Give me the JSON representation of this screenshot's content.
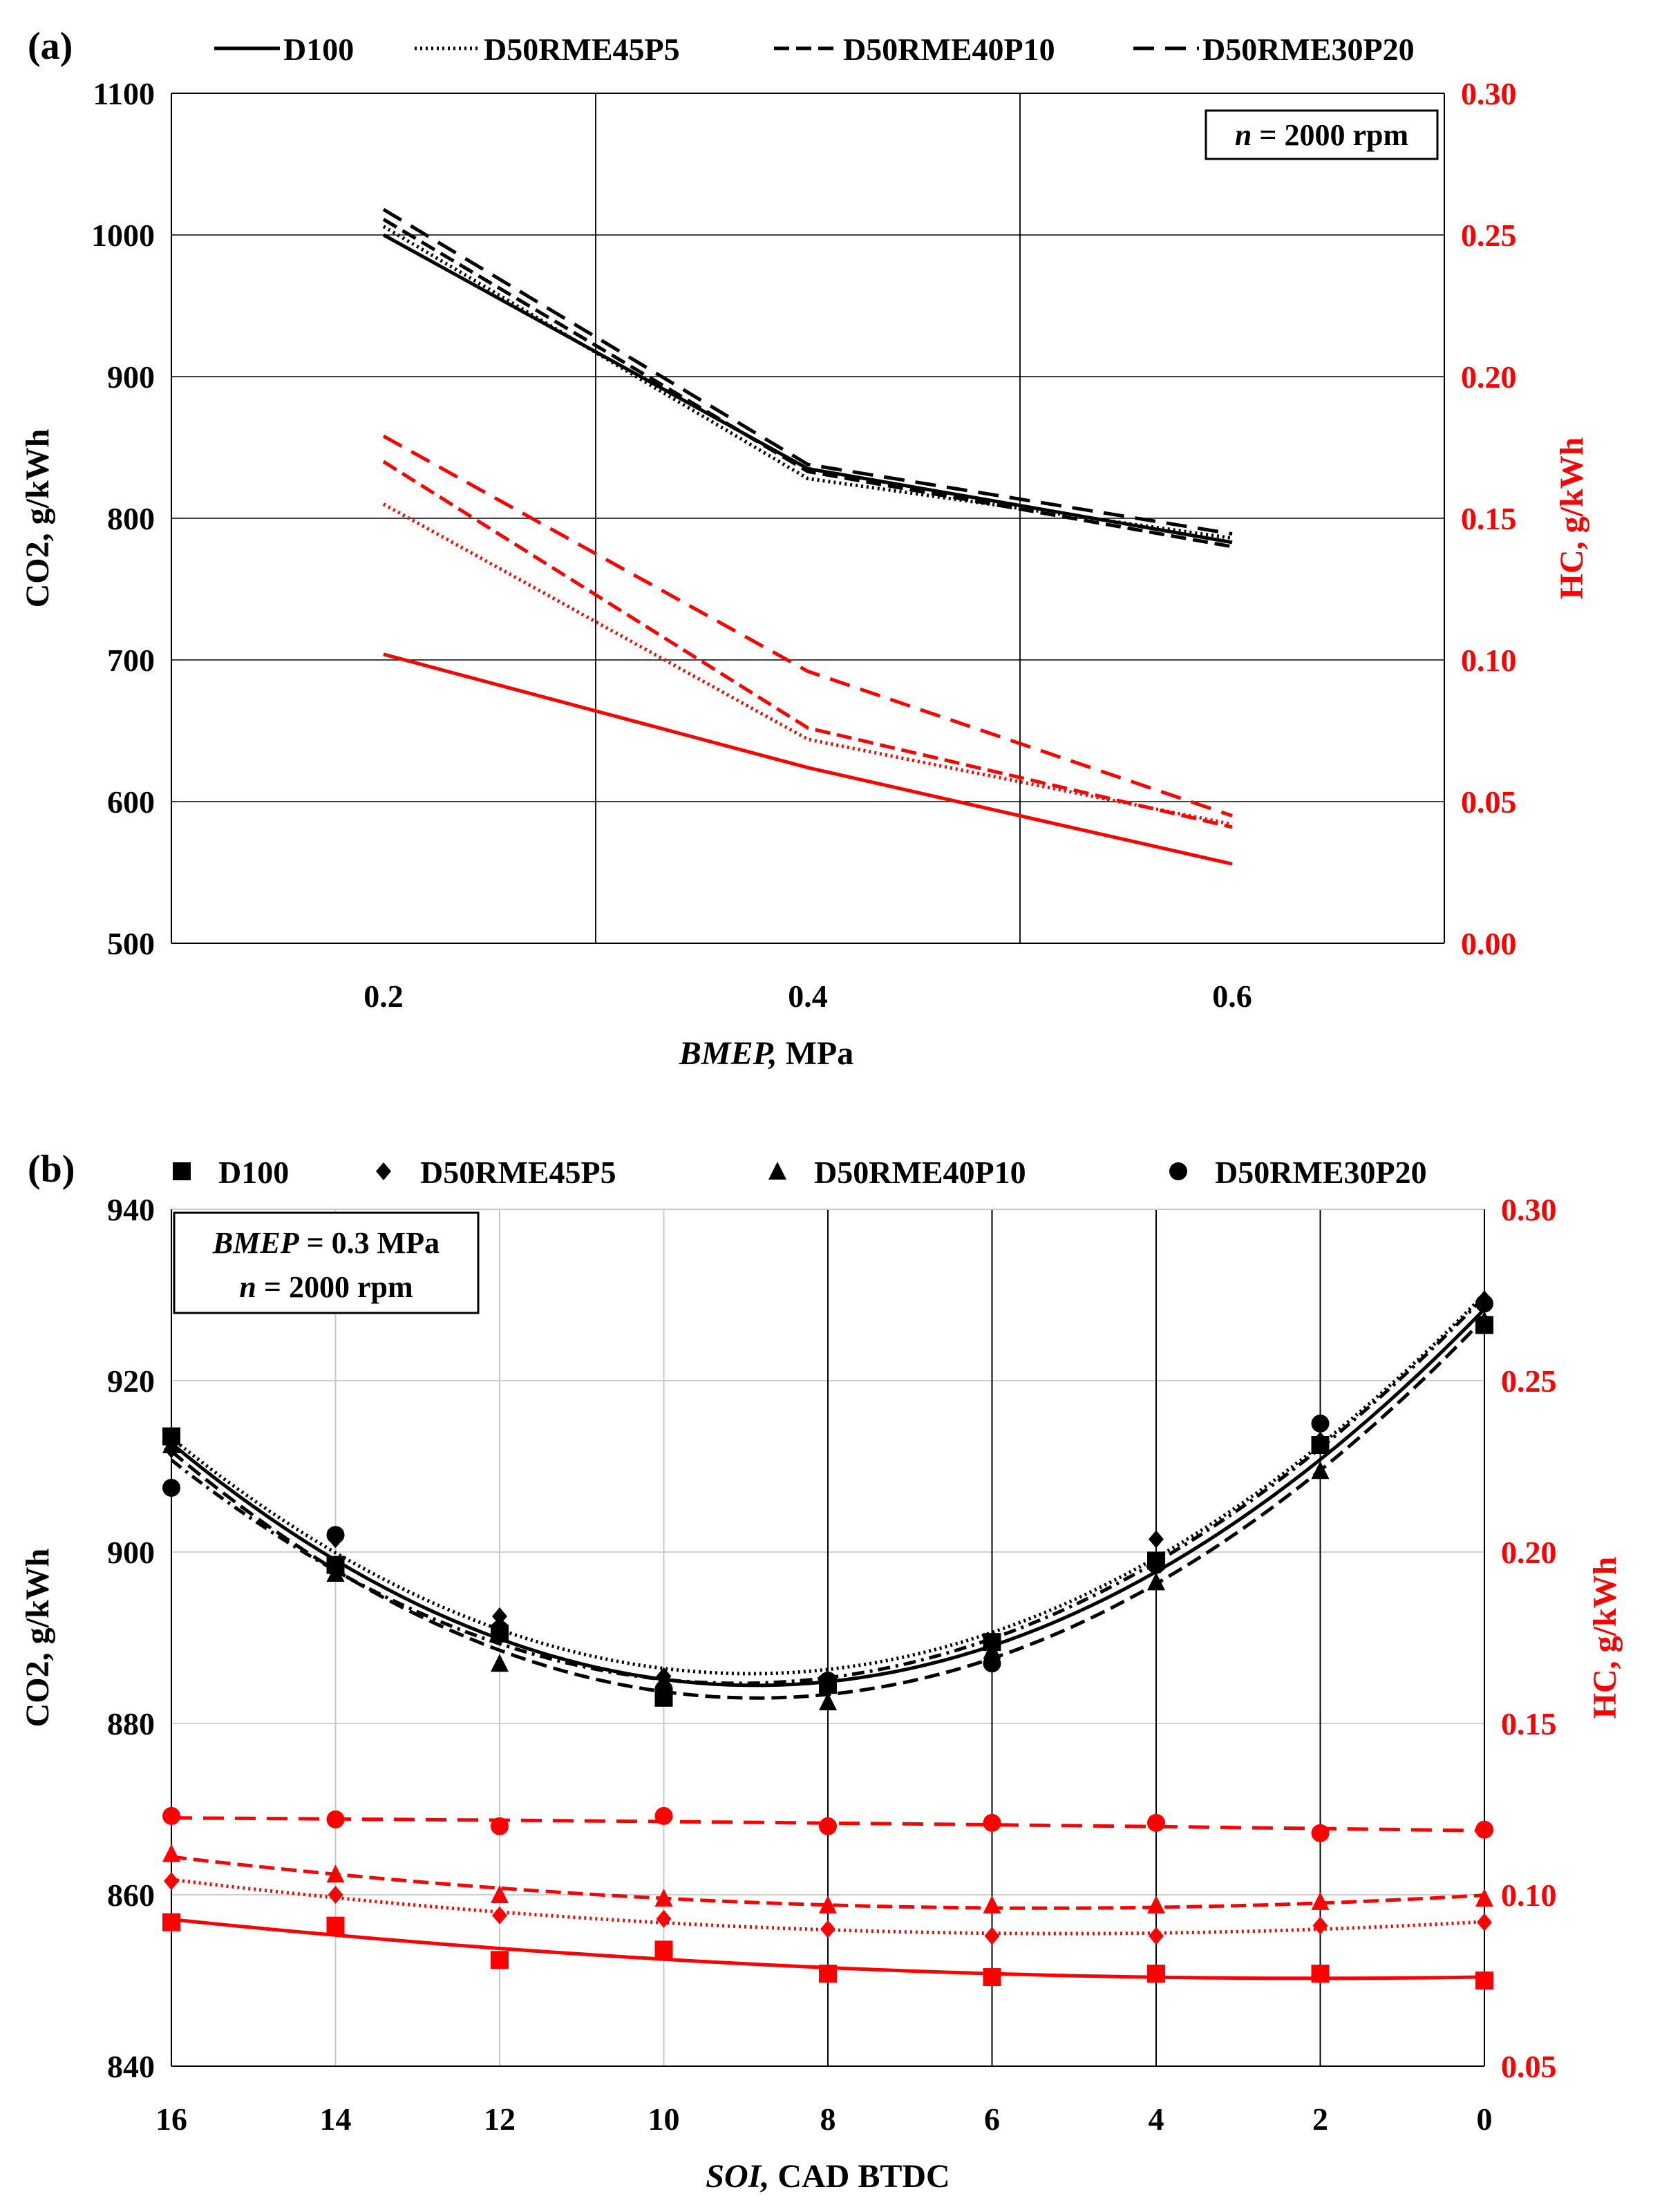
{
  "colors": {
    "co2": "#000000",
    "hc": "#ff0000",
    "grid": "#000000",
    "grid_light": "#c8c8c8"
  },
  "chart_data": [
    {
      "panel_label": "(a)",
      "type": "line",
      "annotation": {
        "prefix": "n",
        "text": " = 2000 rpm"
      },
      "legend": [
        {
          "name": "D100",
          "dash": "solid"
        },
        {
          "name": "D50RME45P5",
          "dash": "dotted"
        },
        {
          "name": "D50RME40P10",
          "dash": "dashed"
        },
        {
          "name": "D50RME30P20",
          "dash": "longdash"
        }
      ],
      "xlabel_italic": "BMEP,",
      "xlabel_rest": " MPa",
      "ylabel_left": "CO2, g/kWh",
      "ylabel_right": "HC, g/kWh",
      "x_range": [
        0.1,
        0.7
      ],
      "x_ticks": [
        "0.2",
        "0.4",
        "0.6"
      ],
      "x_tick_values": [
        0.2,
        0.4,
        0.6
      ],
      "x_grid": [
        0.3,
        0.5
      ],
      "ylim_left": [
        500,
        1100
      ],
      "y_ticks_left": [
        "500",
        "600",
        "700",
        "800",
        "900",
        "1000",
        "1100"
      ],
      "ylim_right": [
        0.0,
        0.3
      ],
      "y_ticks_right": [
        "0.00",
        "0.05",
        "0.10",
        "0.15",
        "0.20",
        "0.25",
        "0.30"
      ],
      "x": [
        0.2,
        0.4,
        0.6
      ],
      "co2_series": [
        {
          "name": "D100",
          "dash": "solid",
          "values": [
            1000,
            835,
            783
          ]
        },
        {
          "name": "D50RME45P5",
          "dash": "dotted",
          "values": [
            1006,
            828,
            786
          ]
        },
        {
          "name": "D50RME40P10",
          "dash": "dashed",
          "values": [
            1011,
            833,
            780
          ]
        },
        {
          "name": "D50RME30P20",
          "dash": "longdash",
          "values": [
            1018,
            838,
            789
          ]
        }
      ],
      "hc_series": [
        {
          "name": "D100",
          "dash": "solid",
          "values": [
            0.102,
            0.062,
            0.028
          ]
        },
        {
          "name": "D50RME45P5",
          "dash": "dotted",
          "values": [
            0.155,
            0.072,
            0.042
          ]
        },
        {
          "name": "D50RME40P10",
          "dash": "dashed",
          "values": [
            0.17,
            0.076,
            0.041
          ]
        },
        {
          "name": "D50RME30P20",
          "dash": "longdash",
          "values": [
            0.179,
            0.096,
            0.045
          ]
        }
      ]
    },
    {
      "panel_label": "(b)",
      "type": "scatter",
      "annotation": {
        "line1_italic": "BMEP",
        "line1_rest": " = 0.3 MPa",
        "line2_italic": "n",
        "line2_rest": " = 2000 rpm"
      },
      "legend": [
        {
          "name": "D100",
          "marker": "square"
        },
        {
          "name": "D50RME45P5",
          "marker": "diamond"
        },
        {
          "name": "D50RME40P10",
          "marker": "triangle"
        },
        {
          "name": "D50RME30P20",
          "marker": "circle"
        }
      ],
      "xlabel_italic": "SOI,",
      "xlabel_rest": " CAD BTDC",
      "ylabel_left": "CO2, g/kWh",
      "ylabel_right": "HC, g/kWh",
      "x_range": [
        16,
        0
      ],
      "x_ticks": [
        "16",
        "14",
        "12",
        "10",
        "8",
        "6",
        "4",
        "2",
        "0"
      ],
      "x_tick_values": [
        16,
        14,
        12,
        10,
        8,
        6,
        4,
        2,
        0
      ],
      "ylim_left": [
        840,
        940
      ],
      "y_ticks_left": [
        "840",
        "860",
        "880",
        "900",
        "920",
        "940"
      ],
      "ylim_right": [
        0.05,
        0.3
      ],
      "y_ticks_right": [
        "0.05",
        "0.10",
        "0.15",
        "0.20",
        "0.25",
        "0.30"
      ],
      "x": [
        16,
        14,
        12,
        10,
        8,
        6,
        4,
        2,
        0
      ],
      "co2_series": [
        {
          "name": "D100",
          "marker": "square",
          "dash": "solid",
          "values": [
            913.5,
            898.5,
            890.5,
            883,
            884.5,
            889.5,
            899,
            912.5,
            926.5
          ]
        },
        {
          "name": "D50RME45P5",
          "marker": "diamond",
          "dash": "dotted",
          "values": [
            912,
            901.5,
            892.5,
            885.5,
            885,
            889,
            901.5,
            913,
            929.5
          ]
        },
        {
          "name": "D50RME40P10",
          "marker": "triangle",
          "dash": "dashed",
          "values": [
            912.5,
            897.5,
            887,
            885,
            882.5,
            888.5,
            896.5,
            909.5,
            927
          ]
        },
        {
          "name": "D50RME30P20",
          "marker": "circle",
          "dash": "dashdot",
          "values": [
            907.5,
            902,
            891,
            884,
            885,
            887,
            898.5,
            915,
            929
          ]
        }
      ],
      "hc_series": [
        {
          "name": "D100",
          "marker": "square",
          "dash": "solid",
          "values": [
            0.092,
            0.091,
            0.081,
            0.084,
            0.077,
            0.076,
            0.077,
            0.077,
            0.075
          ]
        },
        {
          "name": "D50RME45P5",
          "marker": "diamond",
          "dash": "dotted",
          "values": [
            0.104,
            0.1,
            0.094,
            0.093,
            0.09,
            0.088,
            0.088,
            0.091,
            0.092
          ]
        },
        {
          "name": "D50RME40P10",
          "marker": "triangle",
          "dash": "dashed",
          "values": [
            0.112,
            0.106,
            0.1,
            0.099,
            0.097,
            0.097,
            0.097,
            0.098,
            0.099
          ]
        },
        {
          "name": "D50RME30P20",
          "marker": "circle",
          "dash": "longdash",
          "values": [
            0.123,
            0.122,
            0.12,
            0.123,
            0.12,
            0.121,
            0.121,
            0.118,
            0.119
          ]
        }
      ]
    }
  ]
}
